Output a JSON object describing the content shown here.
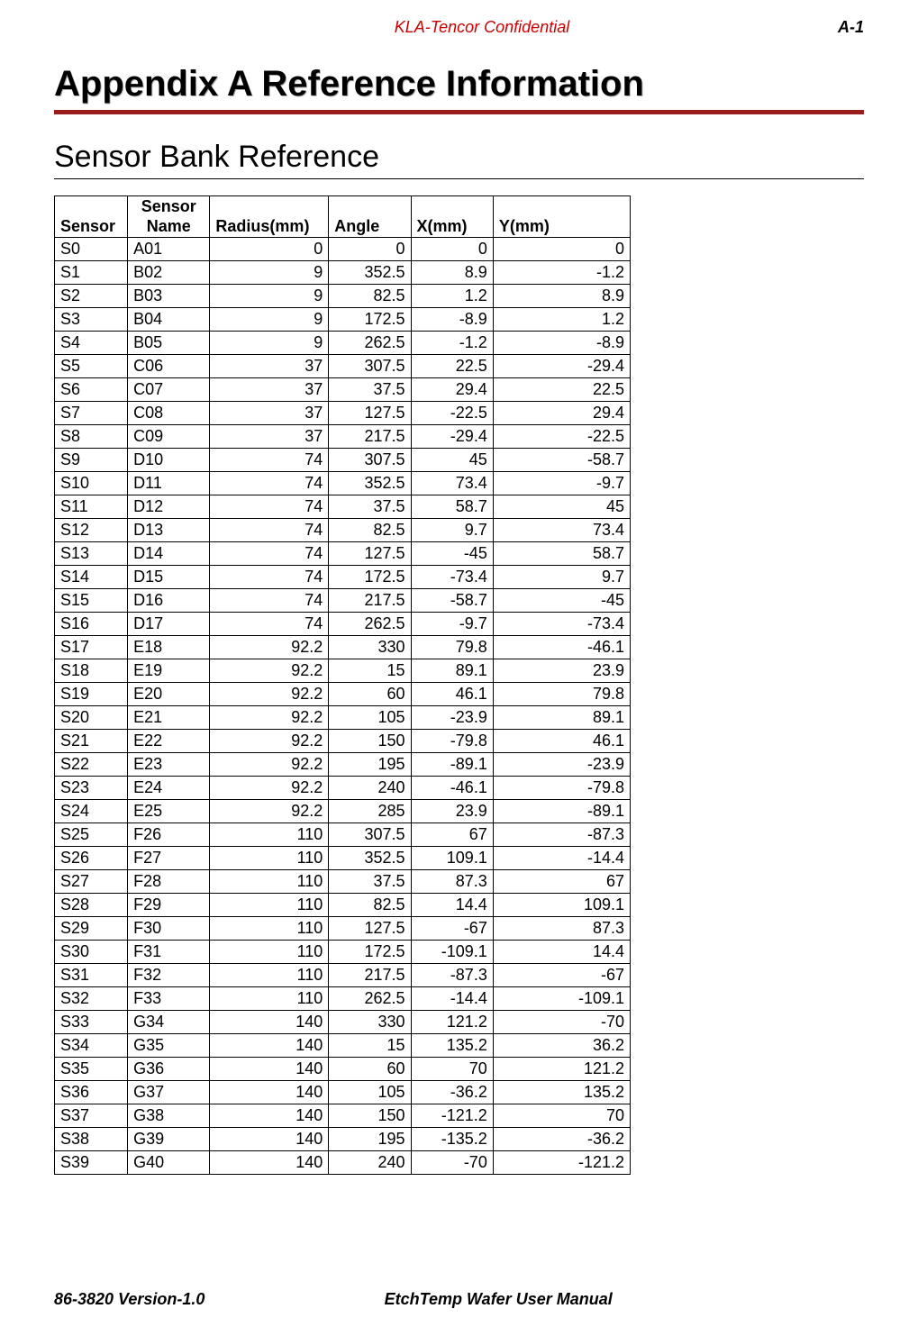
{
  "header": {
    "confidential": "KLA-Tencor Confidential",
    "confidential_color": "#cc0000",
    "page_number": "A-1"
  },
  "title": {
    "text": "Appendix A Reference Information",
    "underline_color": "#9b1c1c"
  },
  "section": {
    "title": "Sensor Bank Reference"
  },
  "table": {
    "columns": [
      "Sensor",
      "Sensor Name",
      "Radius(mm)",
      "Angle",
      "X(mm)",
      "Y(mm)"
    ],
    "column_align": [
      "left",
      "left",
      "right",
      "right",
      "right",
      "right"
    ],
    "rows": [
      [
        "S0",
        "A01",
        "0",
        "0",
        "0",
        "0"
      ],
      [
        "S1",
        "B02",
        "9",
        "352.5",
        "8.9",
        "-1.2"
      ],
      [
        "S2",
        "B03",
        "9",
        "82.5",
        "1.2",
        "8.9"
      ],
      [
        "S3",
        "B04",
        "9",
        "172.5",
        "-8.9",
        "1.2"
      ],
      [
        "S4",
        "B05",
        "9",
        "262.5",
        "-1.2",
        "-8.9"
      ],
      [
        "S5",
        "C06",
        "37",
        "307.5",
        "22.5",
        "-29.4"
      ],
      [
        "S6",
        "C07",
        "37",
        "37.5",
        "29.4",
        "22.5"
      ],
      [
        "S7",
        "C08",
        "37",
        "127.5",
        "-22.5",
        "29.4"
      ],
      [
        "S8",
        "C09",
        "37",
        "217.5",
        "-29.4",
        "-22.5"
      ],
      [
        "S9",
        "D10",
        "74",
        "307.5",
        "45",
        "-58.7"
      ],
      [
        "S10",
        "D11",
        "74",
        "352.5",
        "73.4",
        "-9.7"
      ],
      [
        "S11",
        "D12",
        "74",
        "37.5",
        "58.7",
        "45"
      ],
      [
        "S12",
        "D13",
        "74",
        "82.5",
        "9.7",
        "73.4"
      ],
      [
        "S13",
        "D14",
        "74",
        "127.5",
        "-45",
        "58.7"
      ],
      [
        "S14",
        "D15",
        "74",
        "172.5",
        "-73.4",
        "9.7"
      ],
      [
        "S15",
        "D16",
        "74",
        "217.5",
        "-58.7",
        "-45"
      ],
      [
        "S16",
        "D17",
        "74",
        "262.5",
        "-9.7",
        "-73.4"
      ],
      [
        "S17",
        "E18",
        "92.2",
        "330",
        "79.8",
        "-46.1"
      ],
      [
        "S18",
        "E19",
        "92.2",
        "15",
        "89.1",
        "23.9"
      ],
      [
        "S19",
        "E20",
        "92.2",
        "60",
        "46.1",
        "79.8"
      ],
      [
        "S20",
        "E21",
        "92.2",
        "105",
        "-23.9",
        "89.1"
      ],
      [
        "S21",
        "E22",
        "92.2",
        "150",
        "-79.8",
        "46.1"
      ],
      [
        "S22",
        "E23",
        "92.2",
        "195",
        "-89.1",
        "-23.9"
      ],
      [
        "S23",
        "E24",
        "92.2",
        "240",
        "-46.1",
        "-79.8"
      ],
      [
        "S24",
        "E25",
        "92.2",
        "285",
        "23.9",
        "-89.1"
      ],
      [
        "S25",
        "F26",
        "110",
        "307.5",
        "67",
        "-87.3"
      ],
      [
        "S26",
        "F27",
        "110",
        "352.5",
        "109.1",
        "-14.4"
      ],
      [
        "S27",
        "F28",
        "110",
        "37.5",
        "87.3",
        "67"
      ],
      [
        "S28",
        "F29",
        "110",
        "82.5",
        "14.4",
        "109.1"
      ],
      [
        "S29",
        "F30",
        "110",
        "127.5",
        "-67",
        "87.3"
      ],
      [
        "S30",
        "F31",
        "110",
        "172.5",
        "-109.1",
        "14.4"
      ],
      [
        "S31",
        "F32",
        "110",
        "217.5",
        "-87.3",
        "-67"
      ],
      [
        "S32",
        "F33",
        "110",
        "262.5",
        "-14.4",
        "-109.1"
      ],
      [
        "S33",
        "G34",
        "140",
        "330",
        "121.2",
        "-70"
      ],
      [
        "S34",
        "G35",
        "140",
        "15",
        "135.2",
        "36.2"
      ],
      [
        "S35",
        "G36",
        "140",
        "60",
        "70",
        "121.2"
      ],
      [
        "S36",
        "G37",
        "140",
        "105",
        "-36.2",
        "135.2"
      ],
      [
        "S37",
        "G38",
        "140",
        "150",
        "-121.2",
        "70"
      ],
      [
        "S38",
        "G39",
        "140",
        "195",
        "-135.2",
        "-36.2"
      ],
      [
        "S39",
        "G40",
        "140",
        "240",
        "-70",
        "-121.2"
      ]
    ]
  },
  "footer": {
    "left": "86-3820 Version-1.0",
    "center": "EtchTemp Wafer User Manual"
  }
}
